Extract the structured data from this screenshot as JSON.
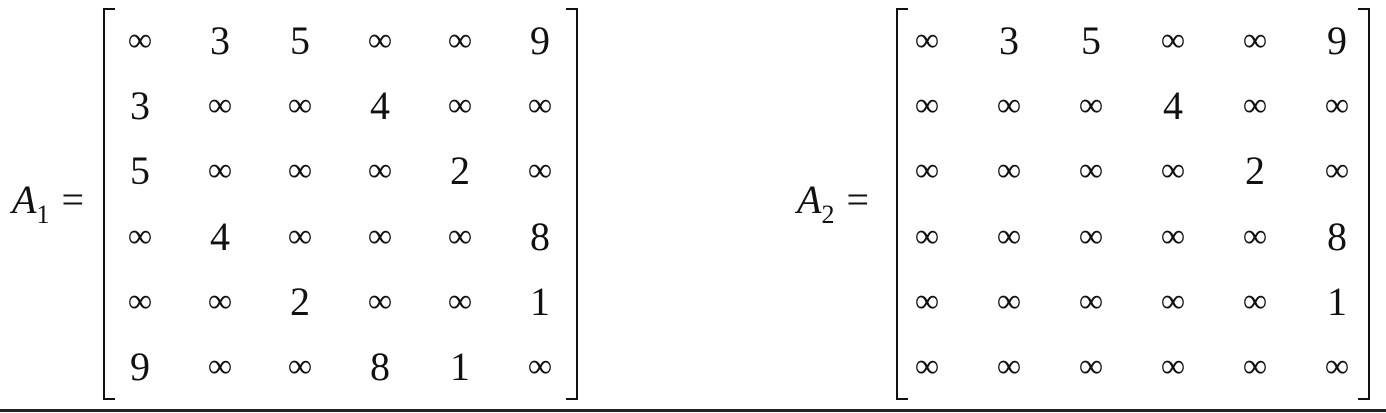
{
  "matrices": [
    {
      "var": "A",
      "sub": "1",
      "eq": "=",
      "rows": [
        [
          "∞",
          "3",
          "5",
          "∞",
          "∞",
          "9"
        ],
        [
          "3",
          "∞",
          "∞",
          "4",
          "∞",
          "∞"
        ],
        [
          "5",
          "∞",
          "∞",
          "∞",
          "2",
          "∞"
        ],
        [
          "∞",
          "4",
          "∞",
          "∞",
          "∞",
          "8"
        ],
        [
          "∞",
          "∞",
          "2",
          "∞",
          "∞",
          "1"
        ],
        [
          "9",
          "∞",
          "∞",
          "8",
          "1",
          "∞"
        ]
      ]
    },
    {
      "var": "A",
      "sub": "2",
      "eq": "=",
      "rows": [
        [
          "∞",
          "3",
          "5",
          "∞",
          "∞",
          "9"
        ],
        [
          "∞",
          "∞",
          "∞",
          "4",
          "∞",
          "∞"
        ],
        [
          "∞",
          "∞",
          "∞",
          "∞",
          "2",
          "∞"
        ],
        [
          "∞",
          "∞",
          "∞",
          "∞",
          "∞",
          "8"
        ],
        [
          "∞",
          "∞",
          "∞",
          "∞",
          "∞",
          "1"
        ],
        [
          "∞",
          "∞",
          "∞",
          "∞",
          "∞",
          "∞"
        ]
      ]
    }
  ]
}
